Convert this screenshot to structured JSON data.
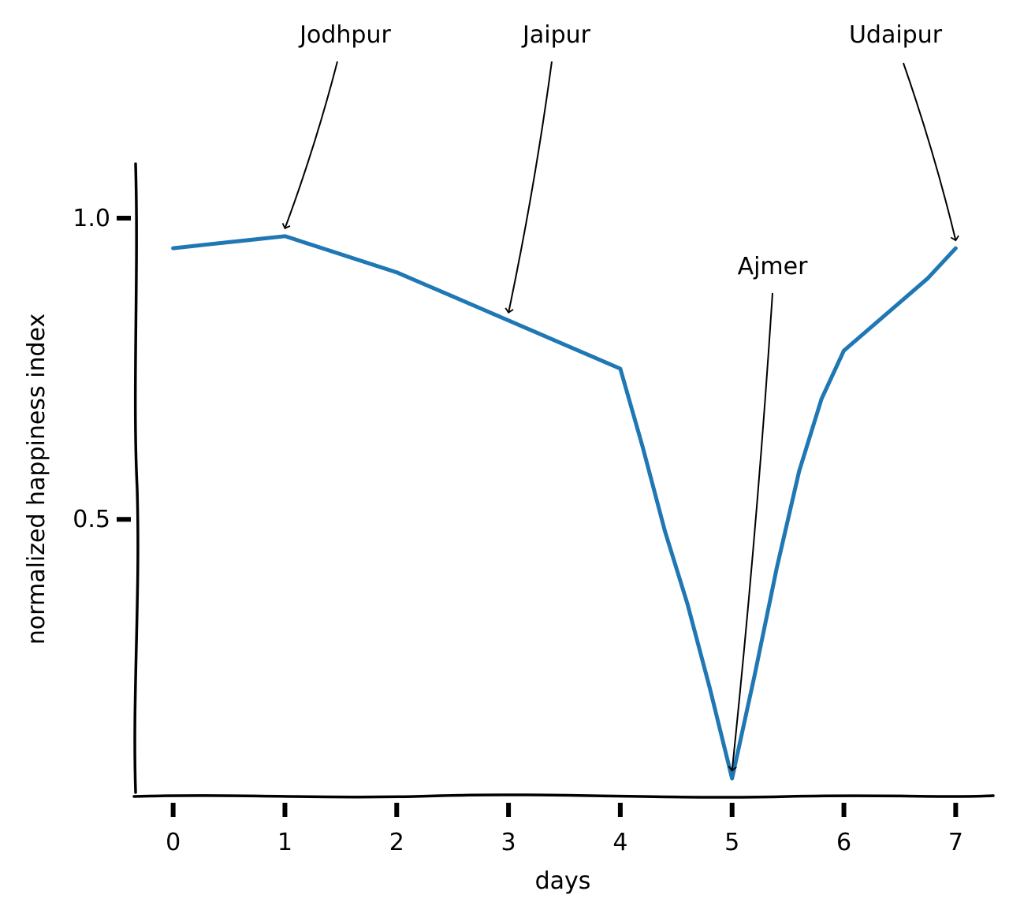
{
  "chart_data": {
    "type": "line",
    "title": "",
    "xlabel": "days",
    "ylabel": "normalized happiness index",
    "xlim": [
      -0.35,
      7.35
    ],
    "ylim": [
      0.04,
      1.09
    ],
    "x_ticks": [
      0,
      1,
      2,
      3,
      4,
      5,
      6,
      7
    ],
    "x_tick_labels": [
      "0",
      "1",
      "2",
      "3",
      "4",
      "5",
      "6",
      "7"
    ],
    "y_ticks": [
      0.5,
      1.0
    ],
    "y_tick_labels": [
      "0.5",
      "1.0"
    ],
    "grid": false,
    "legend": "none",
    "line_color": "#1f77b4",
    "series": [
      {
        "x": [
          0,
          0.25,
          0.5,
          0.75,
          1,
          1.25,
          1.5,
          1.75,
          2,
          2.25,
          2.5,
          2.75,
          3,
          3.25,
          3.5,
          3.75,
          4,
          4.2,
          4.4,
          4.6,
          4.8,
          5,
          5.2,
          5.4,
          5.6,
          5.8,
          6,
          6.25,
          6.5,
          6.75,
          7
        ],
        "y": [
          0.95,
          0.955,
          0.96,
          0.965,
          0.97,
          0.955,
          0.94,
          0.925,
          0.91,
          0.89,
          0.87,
          0.85,
          0.83,
          0.81,
          0.79,
          0.77,
          0.75,
          0.62,
          0.48,
          0.36,
          0.22,
          0.07,
          0.24,
          0.42,
          0.58,
          0.7,
          0.78,
          0.82,
          0.86,
          0.9,
          0.95
        ]
      }
    ],
    "annotations": [
      {
        "text": "Jodhpur",
        "x": 1,
        "y": 0.97
      },
      {
        "text": "Jaipur",
        "x": 3,
        "y": 0.83
      },
      {
        "text": "Ajmer",
        "x": 5,
        "y": 0.07
      },
      {
        "text": "Udaipur",
        "x": 7,
        "y": 0.95
      }
    ]
  }
}
